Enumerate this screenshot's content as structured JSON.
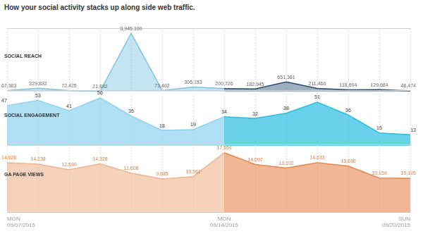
{
  "title": "How your social activity stacks up along side web traffic.",
  "chart_data": [
    {
      "type": "line",
      "title": "SOCIAL REACH",
      "categories": [
        [
          "MON",
          "09/07/2015"
        ],
        null,
        null,
        null,
        null,
        null,
        null,
        [
          "MON",
          "09/14/2015"
        ],
        null,
        null,
        null,
        null,
        null,
        [
          "SUN",
          "09/20/2015"
        ]
      ],
      "series": [
        {
          "colors": [
            "#7fc4e3",
            "#7fc4e3",
            "#7fc4e3",
            "#7fc4e3",
            "#7fc4e3",
            "#7fc4e3",
            "#7fc4e3",
            "#2b4d72",
            "#2b4d72",
            "#2b4d72",
            "#2b4d72",
            "#2b4d72",
            "#2b4d72",
            "#2b4d72"
          ],
          "values": [
            67383,
            229832,
            72425,
            21882,
            3945100,
            73462,
            305153,
            200726,
            182945,
            651361,
            211460,
            118604,
            129684,
            46474
          ],
          "value_labels": [
            "67,383",
            "229,832",
            "72,425",
            "21,882",
            "3,945,100",
            "73,462",
            "305,153",
            "200,726",
            "182,945",
            "651,361",
            "211,460",
            "118,604",
            "129,684",
            "46,474"
          ]
        }
      ],
      "ylim": [
        0,
        4300000
      ],
      "grid": true,
      "tick_labels": false,
      "data_labels": true
    },
    {
      "type": "line",
      "title": "SOCIAL ENGAGEMENT",
      "categories": [
        [
          "MON",
          "09/07/2015"
        ],
        null,
        null,
        null,
        null,
        null,
        null,
        [
          "MON",
          "09/14/2015"
        ],
        null,
        null,
        null,
        null,
        null,
        [
          "SUN",
          "09/20/2015"
        ]
      ],
      "series": [
        {
          "colors": [
            "#8fd3ef",
            "#8fd3ef",
            "#8fd3ef",
            "#8fd3ef",
            "#8fd3ef",
            "#8fd3ef",
            "#8fd3ef",
            "#2bbde3",
            "#2bbde3",
            "#2bbde3",
            "#2bbde3",
            "#2bbde3",
            "#2bbde3",
            "#2bbde3"
          ],
          "values": [
            47,
            53,
            41,
            56,
            35,
            18,
            19,
            34,
            32,
            38,
            51,
            36,
            15,
            13
          ]
        }
      ],
      "ylim": [
        0,
        65
      ],
      "grid": true,
      "tick_labels": false,
      "data_labels": true
    },
    {
      "type": "line",
      "title": "GA PAGE VIEWS",
      "categories": [
        [
          "MON",
          "09/07/2015"
        ],
        null,
        null,
        null,
        null,
        null,
        null,
        [
          "MON",
          "09/14/2015"
        ],
        null,
        null,
        null,
        null,
        null,
        [
          "SUN",
          "09/20/2015"
        ]
      ],
      "series": [
        {
          "colors": [
            "#efb48e",
            "#efb48e",
            "#efb48e",
            "#efb48e",
            "#efb48e",
            "#efb48e",
            "#efb48e",
            "#e4874f",
            "#e4874f",
            "#e4874f",
            "#e4874f",
            "#e4874f",
            "#e4874f",
            "#e4874f"
          ],
          "values": [
            14626,
            14238,
            12590,
            14328,
            11608,
            9885,
            10561,
            17559,
            14097,
            13102,
            14633,
            13630,
            10159,
            10105
          ],
          "value_labels": [
            "14,626",
            "14,238",
            "12,590",
            "14,328",
            "11,608",
            "9,885",
            "10,561",
            "17,559",
            "14,097",
            "13,102",
            "14,633",
            "13,630",
            "10,159",
            "10,105"
          ]
        }
      ],
      "ylim": [
        0,
        20000
      ],
      "grid": true,
      "tick_labels": "x",
      "data_labels": true
    }
  ]
}
